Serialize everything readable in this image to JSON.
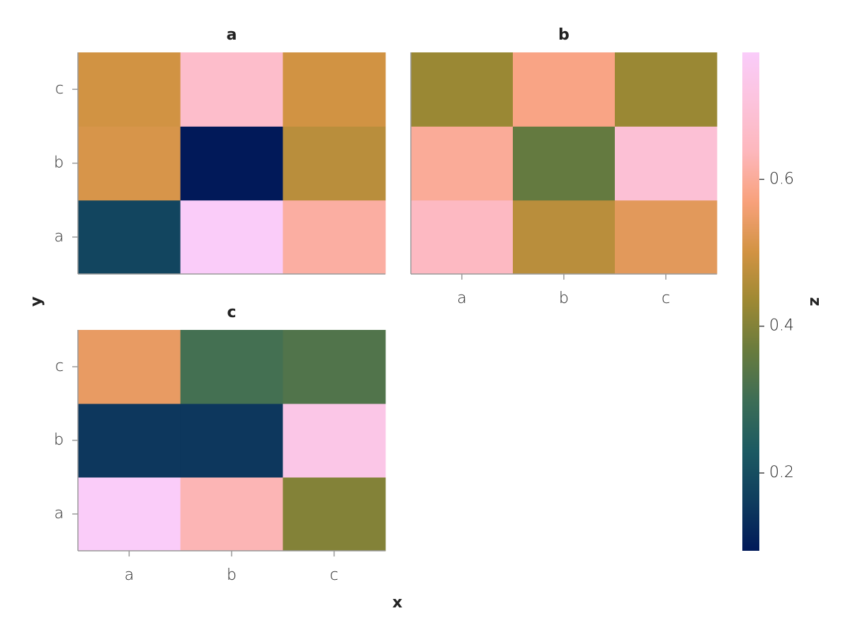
{
  "chart_data": {
    "type": "heatmap",
    "xlabel": "x",
    "ylabel": "y",
    "x": [
      "a",
      "b",
      "c"
    ],
    "y": [
      "a",
      "b",
      "c"
    ],
    "facets": [
      {
        "title": "a",
        "values": [
          [
            0.18,
            0.77,
            0.61
          ],
          [
            0.51,
            0.094,
            0.47
          ],
          [
            0.5,
            0.67,
            0.5
          ]
        ]
      },
      {
        "title": "b",
        "values": [
          [
            0.65,
            0.47,
            0.53
          ],
          [
            0.6,
            0.36,
            0.69
          ],
          [
            0.43,
            0.58,
            0.43
          ]
        ]
      },
      {
        "title": "c",
        "values": [
          [
            0.77,
            0.63,
            0.4
          ],
          [
            0.15,
            0.15,
            0.73
          ],
          [
            0.54,
            0.31,
            0.33
          ]
        ]
      }
    ],
    "colorbar": {
      "label": "z",
      "zlim": [
        0.094,
        0.773
      ],
      "ticks": [
        0.2,
        0.4,
        0.6
      ]
    },
    "colormap": [
      "#011959",
      "#0f3d5e",
      "#1c5a62",
      "#3c6d56",
      "#687b3e",
      "#9d8933",
      "#d29343",
      "#f8a17b",
      "#fdb7bc",
      "#fcc3dc",
      "#faccfa"
    ]
  }
}
